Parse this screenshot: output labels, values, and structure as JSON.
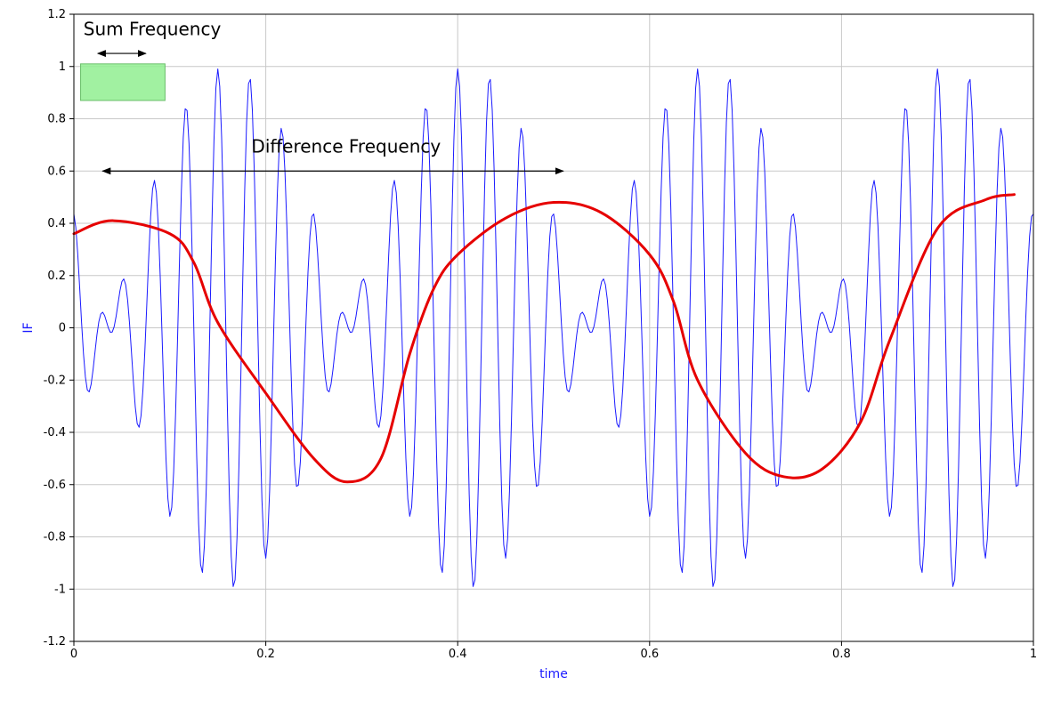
{
  "chart_data": {
    "type": "line",
    "title": "",
    "xlabel": "time",
    "ylabel": "IF",
    "xlim": [
      0,
      1
    ],
    "ylim": [
      -1.2,
      1.2
    ],
    "grid": true,
    "x_ticks": [
      "0",
      "0.2",
      "0.4",
      "0.6",
      "0.8",
      "1"
    ],
    "y_ticks": [
      "1.2",
      "1",
      "0.8",
      "0.6",
      "0.4",
      "0.2",
      "0",
      "-0.2",
      "-0.4",
      "-0.6",
      "-0.8",
      "-1",
      "-1.2"
    ],
    "series": [
      {
        "color": "#1a1aff",
        "line_width": "thin",
        "function": "cos(2*pi*30*t) * cos(2*pi*2*t + 1.12)",
        "x_range": [
          0,
          1
        ]
      },
      {
        "color": "#e60000",
        "line_width": "thick",
        "x": [
          0,
          0.04,
          0.1,
          0.125,
          0.15,
          0.2,
          0.25,
          0.285,
          0.32,
          0.35,
          0.375,
          0.4,
          0.45,
          0.5,
          0.55,
          0.6,
          0.625,
          0.65,
          0.7,
          0.74,
          0.78,
          0.82,
          0.85,
          0.9,
          0.95,
          0.98
        ],
        "y": [
          0.36,
          0.41,
          0.36,
          0.25,
          0.02,
          -0.25,
          -0.5,
          -0.59,
          -0.5,
          -0.1,
          0.15,
          0.28,
          0.42,
          0.48,
          0.44,
          0.28,
          0.1,
          -0.2,
          -0.48,
          -0.57,
          -0.54,
          -0.36,
          -0.05,
          0.38,
          0.49,
          0.51
        ]
      }
    ],
    "annotations": [
      {
        "text": "Sum Frequency",
        "arrow_x": [
          0.025,
          0.075
        ],
        "arrow_y": 1.05,
        "text_x": 0.01,
        "text_y": 1.12,
        "highlight_box": {
          "x": [
            0.007,
            0.095
          ],
          "y": [
            0.87,
            1.01
          ],
          "color": "#90ee90"
        }
      },
      {
        "text": "Difference Frequency",
        "arrow_x": [
          0.03,
          0.51
        ],
        "arrow_y": 0.6,
        "text_x": 0.185,
        "text_y": 0.67
      }
    ]
  }
}
